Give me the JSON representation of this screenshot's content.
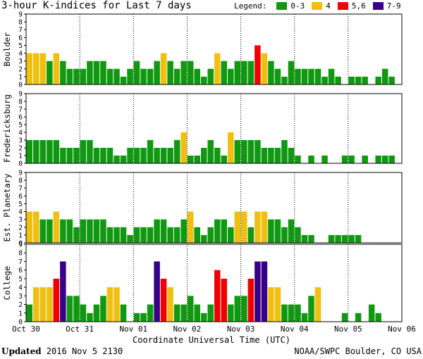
{
  "title": "3-hour K-indices for Last 7 days",
  "legend": {
    "label": "Legend:",
    "items": [
      {
        "label": "0-3",
        "color": "#109810"
      },
      {
        "label": "4",
        "color": "#f0c010"
      },
      {
        "label": "5,6",
        "color": "#f00000"
      },
      {
        "label": "7-9",
        "color": "#380088"
      }
    ]
  },
  "footer": {
    "updated_label": "Updated",
    "updated_value": "2016 Nov  5 2130",
    "source": "NOAA/SWPC Boulder, CO USA"
  },
  "chart_data": {
    "type": "bar",
    "xlabel": "Coordinate Universal Time (UTC)",
    "x_ticks": [
      "Oct 30",
      "Oct 31",
      "Nov 01",
      "Nov 02",
      "Nov 03",
      "Nov 04",
      "Nov 05",
      "Nov 06"
    ],
    "ylim": [
      0,
      9
    ],
    "y_ticks": [
      0,
      1,
      2,
      3,
      4,
      5,
      6,
      7,
      8,
      9
    ],
    "series": [
      {
        "name": "Boulder",
        "values": [
          4,
          4,
          4,
          3,
          4,
          3,
          2,
          2,
          2,
          3,
          3,
          3,
          2,
          2,
          1,
          2,
          3,
          2,
          2,
          3,
          4,
          3,
          2,
          3,
          3,
          2,
          1,
          2,
          4,
          3,
          2,
          3,
          3,
          3,
          5,
          4,
          3,
          2,
          1,
          3,
          2,
          2,
          2,
          2,
          1,
          2,
          1,
          0,
          1,
          1,
          1,
          0,
          1,
          2,
          1,
          0
        ]
      },
      {
        "name": "Fredericksburg",
        "values": [
          3,
          3,
          3,
          3,
          3,
          2,
          2,
          2,
          3,
          3,
          2,
          2,
          2,
          1,
          1,
          2,
          2,
          2,
          3,
          2,
          2,
          2,
          3,
          4,
          1,
          1,
          2,
          3,
          2,
          1,
          4,
          3,
          3,
          3,
          3,
          2,
          2,
          2,
          3,
          2,
          1,
          0,
          1,
          0,
          1,
          0,
          0,
          1,
          1,
          0,
          1,
          0,
          1,
          1,
          1,
          0
        ]
      },
      {
        "name": "Est. Planetary",
        "values": [
          4,
          4,
          3,
          3,
          4,
          3,
          3,
          2,
          3,
          3,
          3,
          3,
          2,
          2,
          2,
          1,
          2,
          2,
          2,
          3,
          3,
          2,
          2,
          3,
          4,
          2,
          1,
          2,
          3,
          3,
          2,
          4,
          4,
          2,
          4,
          4,
          3,
          3,
          2,
          3,
          2,
          1,
          1,
          0,
          0,
          1,
          1,
          1,
          1,
          1,
          0,
          0,
          0,
          0,
          0,
          0
        ]
      },
      {
        "name": "College",
        "values": [
          2,
          4,
          4,
          4,
          5,
          7,
          3,
          3,
          2,
          1,
          2,
          3,
          4,
          4,
          2,
          0,
          1,
          1,
          2,
          7,
          5,
          4,
          2,
          2,
          3,
          2,
          1,
          2,
          6,
          5,
          2,
          3,
          3,
          5,
          7,
          7,
          4,
          4,
          2,
          2,
          2,
          1,
          3,
          4,
          0,
          0,
          0,
          1,
          0,
          1,
          0,
          2,
          1,
          0,
          0,
          0
        ]
      }
    ]
  }
}
